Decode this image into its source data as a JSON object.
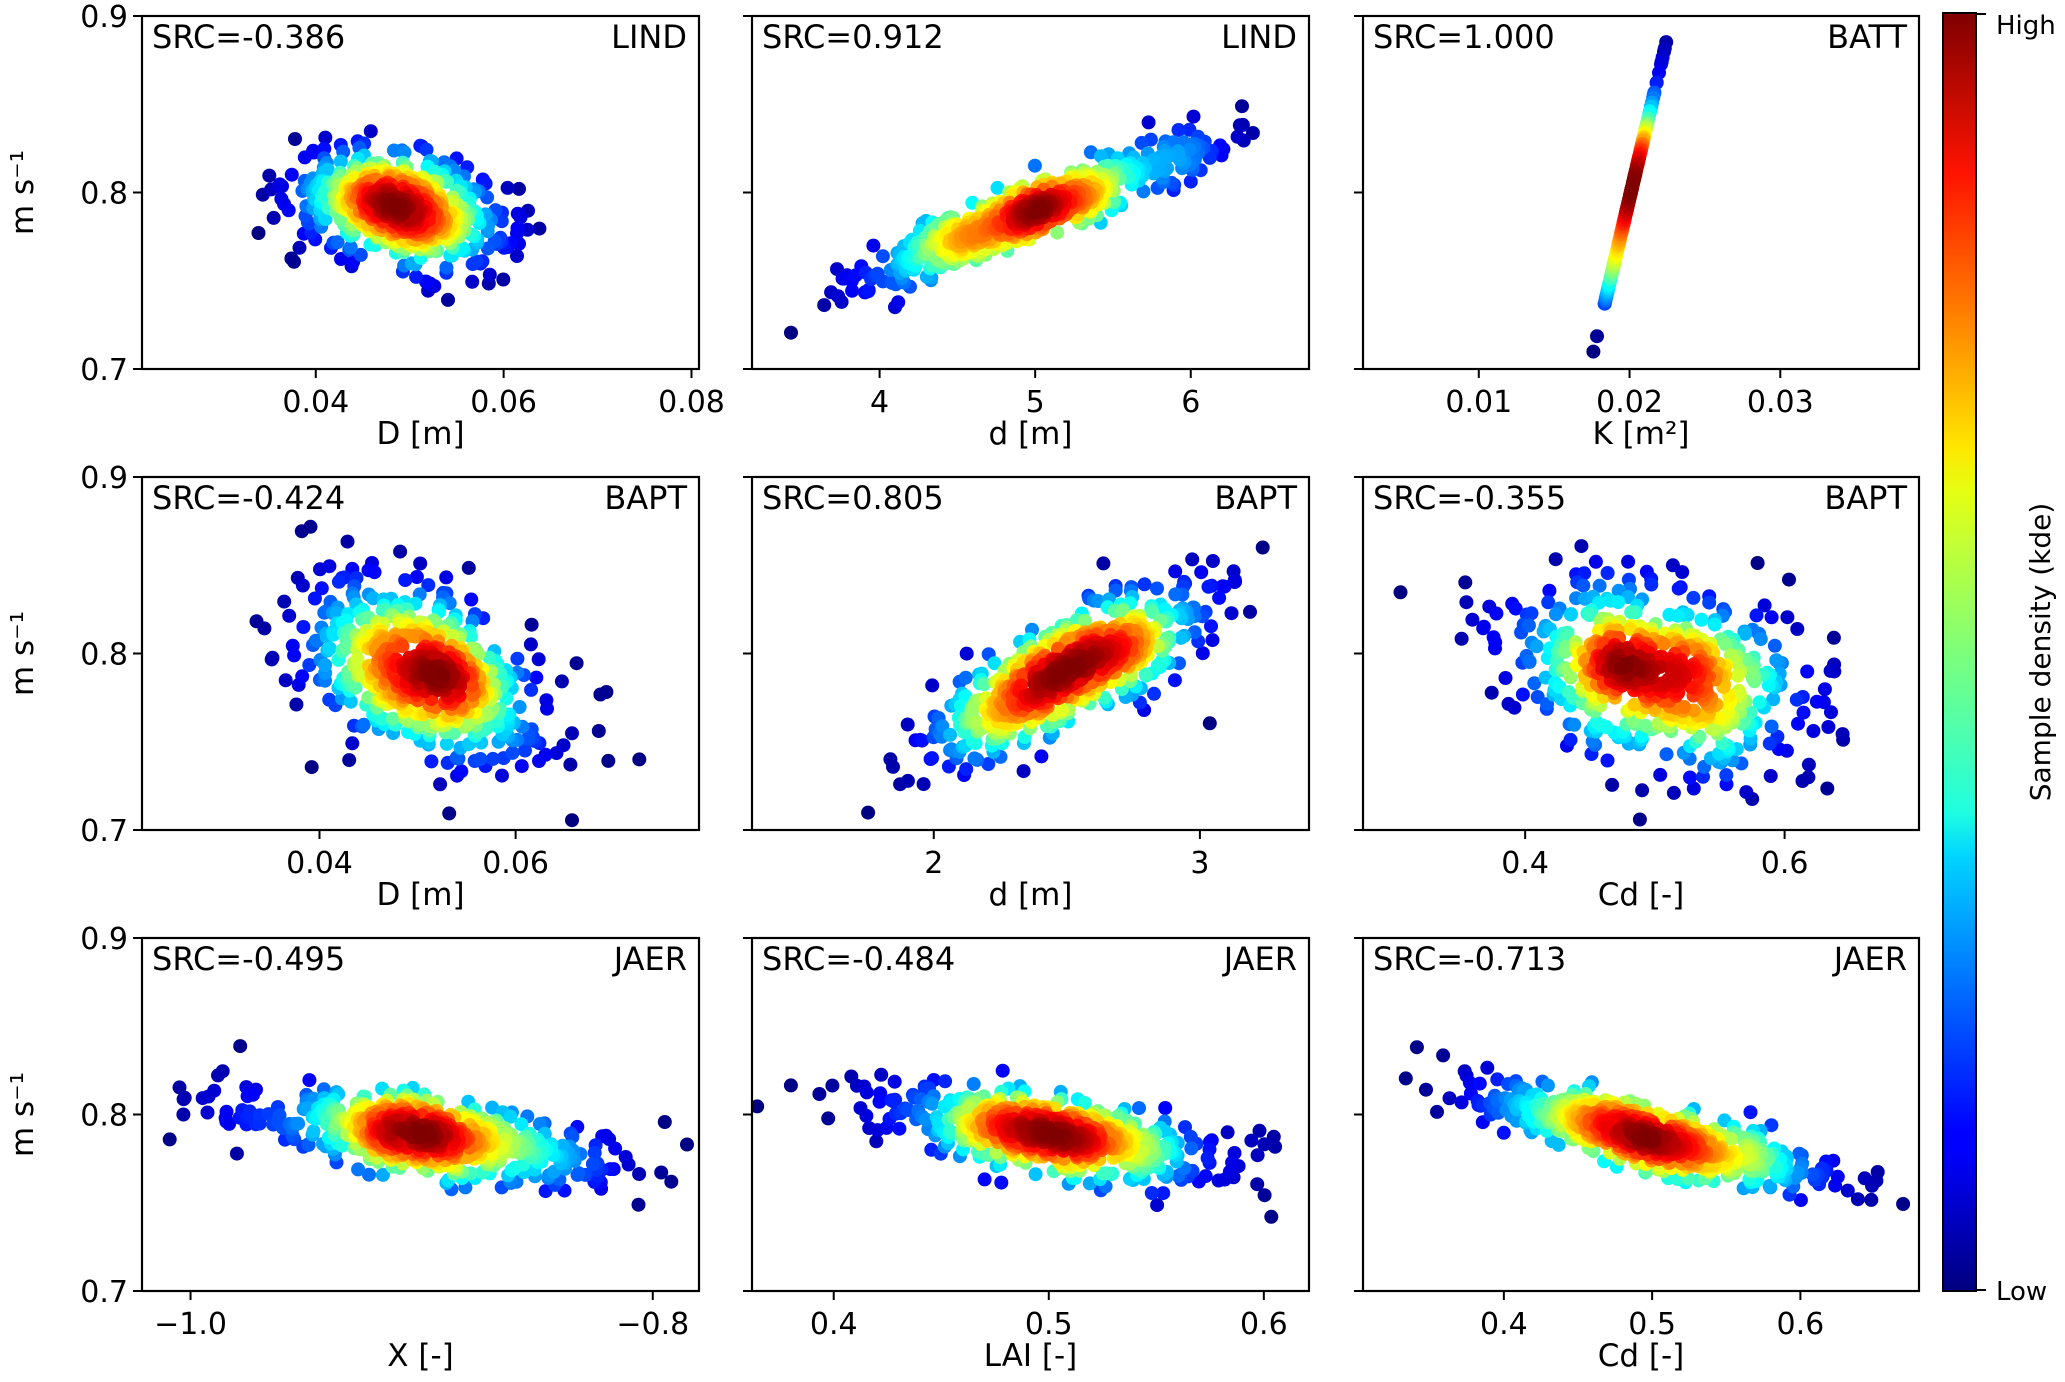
{
  "colorbar": {
    "high_label": "High",
    "low_label": "Low",
    "title": "Sample density (kde)",
    "colormap": "jet"
  },
  "ylabel": "m s⁻¹",
  "chart_data": [
    {
      "type": "scatter",
      "src_label": "SRC=-0.386",
      "model": "LIND",
      "xlabel": "D [m]",
      "xlim": [
        0.0215,
        0.0808
      ],
      "ylim": [
        0.7,
        0.9
      ],
      "xticks": [
        0.04,
        0.06,
        0.08
      ],
      "xtick_labels": [
        "0.04",
        "0.06",
        "0.08"
      ],
      "yticks": [
        0.7,
        0.8,
        0.9
      ],
      "ytick_labels": [
        "0.7",
        "0.8",
        "0.9"
      ],
      "distribution": {
        "x_mean": 0.049,
        "x_sd": 0.0058,
        "y_mean": 0.791,
        "y_sd": 0.016,
        "corr": -0.386,
        "n": 600
      }
    },
    {
      "type": "scatter",
      "src_label": "SRC=0.912",
      "model": "LIND",
      "xlabel": "d [m]",
      "xlim": [
        3.18,
        6.76
      ],
      "ylim": [
        0.7,
        0.9
      ],
      "xticks": [
        4,
        5,
        6
      ],
      "xtick_labels": [
        "4",
        "5",
        "6"
      ],
      "yticks": [
        0.7,
        0.8,
        0.9
      ],
      "ytick_labels": [
        "",
        "",
        ""
      ],
      "distribution": {
        "x_mean": 5.0,
        "x_sd": 0.55,
        "y_mean": 0.789,
        "y_sd": 0.02,
        "corr": 0.912,
        "n": 600
      }
    },
    {
      "type": "scatter",
      "src_label": "SRC=1.000",
      "model": "BATT",
      "xlabel": "K [m²]",
      "xlim": [
        0.00232,
        0.0392
      ],
      "ylim": [
        0.7,
        0.9
      ],
      "xticks": [
        0.01,
        0.02,
        0.03
      ],
      "xtick_labels": [
        "0.01",
        "0.02",
        "0.03"
      ],
      "yticks": [
        0.7,
        0.8,
        0.9
      ],
      "ytick_labels": [
        "",
        "",
        ""
      ],
      "line": {
        "x_at_y_0.7": 0.01733,
        "x_at_y_0.9": 0.02284,
        "y_mean": 0.795,
        "y_sd": 0.03,
        "n": 300
      }
    },
    {
      "type": "scatter",
      "src_label": "SRC=-0.424",
      "model": "BAPT",
      "xlabel": "D [m]",
      "xlim": [
        0.0219,
        0.0787
      ],
      "ylim": [
        0.7,
        0.9
      ],
      "xticks": [
        0.04,
        0.06
      ],
      "xtick_labels": [
        "0.04",
        "0.06"
      ],
      "yticks": [
        0.7,
        0.8,
        0.9
      ],
      "ytick_labels": [
        "0.7",
        "0.8",
        "0.9"
      ],
      "distribution": {
        "x_mean": 0.0505,
        "x_sd": 0.0062,
        "y_mean": 0.789,
        "y_sd": 0.026,
        "corr": -0.424,
        "n": 600
      }
    },
    {
      "type": "scatter",
      "src_label": "SRC=0.805",
      "model": "BAPT",
      "xlabel": "d [m]",
      "xlim": [
        1.317,
        3.41
      ],
      "ylim": [
        0.7,
        0.9
      ],
      "xticks": [
        2,
        3
      ],
      "xtick_labels": [
        "2",
        "3"
      ],
      "yticks": [
        0.7,
        0.8,
        0.9
      ],
      "ytick_labels": [
        "",
        "",
        ""
      ],
      "distribution": {
        "x_mean": 2.5,
        "x_sd": 0.28,
        "y_mean": 0.789,
        "y_sd": 0.026,
        "corr": 0.805,
        "n": 600
      }
    },
    {
      "type": "scatter",
      "src_label": "SRC=-0.355",
      "model": "BAPT",
      "xlabel": "Cd [-]",
      "xlim": [
        0.275,
        0.7036
      ],
      "ylim": [
        0.7,
        0.9
      ],
      "xticks": [
        0.4,
        0.6
      ],
      "xtick_labels": [
        "0.4",
        "0.6"
      ],
      "yticks": [
        0.7,
        0.8,
        0.9
      ],
      "ytick_labels": [
        "",
        "",
        ""
      ],
      "distribution": {
        "x_mean": 0.5,
        "x_sd": 0.06,
        "y_mean": 0.789,
        "y_sd": 0.026,
        "corr": -0.355,
        "n": 600
      }
    },
    {
      "type": "scatter",
      "src_label": "SRC=-0.495",
      "model": "JAER",
      "xlabel": "X [-]",
      "xlim": [
        -1.021,
        -0.78
      ],
      "ylim": [
        0.7,
        0.9
      ],
      "xticks": [
        -1.0,
        -0.8
      ],
      "xtick_labels": [
        "−1.0",
        "−0.8"
      ],
      "yticks": [
        0.7,
        0.8,
        0.9
      ],
      "ytick_labels": [
        "0.7",
        "0.8",
        "0.9"
      ],
      "distribution": {
        "x_mean": -0.9,
        "x_sd": 0.04,
        "y_mean": 0.788,
        "y_sd": 0.013,
        "corr": -0.6,
        "n": 600
      }
    },
    {
      "type": "scatter",
      "src_label": "SRC=-0.484",
      "model": "JAER",
      "xlabel": "LAI [-]",
      "xlim": [
        0.362,
        0.621
      ],
      "ylim": [
        0.7,
        0.9
      ],
      "xticks": [
        0.4,
        0.5,
        0.6
      ],
      "xtick_labels": [
        "0.4",
        "0.5",
        "0.6"
      ],
      "yticks": [
        0.7,
        0.8,
        0.9
      ],
      "ytick_labels": [
        "",
        "",
        ""
      ],
      "distribution": {
        "x_mean": 0.5,
        "x_sd": 0.04,
        "y_mean": 0.788,
        "y_sd": 0.013,
        "corr": -0.6,
        "n": 600
      }
    },
    {
      "type": "scatter",
      "src_label": "SRC=-0.713",
      "model": "JAER",
      "xlabel": "Cd [-]",
      "xlim": [
        0.305,
        0.68
      ],
      "ylim": [
        0.7,
        0.9
      ],
      "xticks": [
        0.4,
        0.5,
        0.6
      ],
      "xtick_labels": [
        "0.4",
        "0.5",
        "0.6"
      ],
      "yticks": [
        0.7,
        0.8,
        0.9
      ],
      "ytick_labels": [
        "",
        "",
        ""
      ],
      "distribution": {
        "x_mean": 0.5,
        "x_sd": 0.06,
        "y_mean": 0.787,
        "y_sd": 0.014,
        "corr": -0.8,
        "n": 600
      }
    }
  ]
}
